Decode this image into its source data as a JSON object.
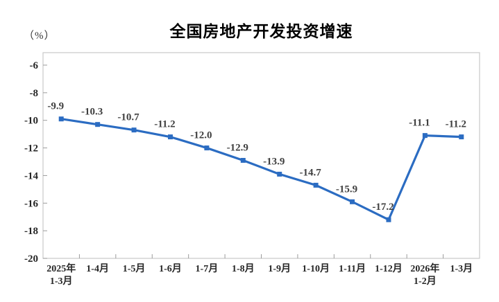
{
  "chart_data": {
    "type": "line",
    "title": "全国房地产开发投资增速",
    "unit": "（%）",
    "categories": [
      "2025年\n1-3月",
      "1-4月",
      "1-5月",
      "1-6月",
      "1-7月",
      "1-8月",
      "1-9月",
      "1-10月",
      "1-11月",
      "1-12月",
      "2026年\n1-2月",
      "1-3月"
    ],
    "values": [
      -9.9,
      -10.3,
      -10.7,
      -11.2,
      -12.0,
      -12.9,
      -13.9,
      -14.7,
      -15.9,
      -17.2,
      -11.1,
      -11.2
    ],
    "data_labels": [
      "-9.9",
      "-10.3",
      "-10.7",
      "-11.2",
      "-12.0",
      "-12.9",
      "-13.9",
      "-14.7",
      "-15.9",
      "-17.2",
      "-11.1",
      "-11.2"
    ],
    "xlabel": "",
    "ylabel": "（%）",
    "ylim": [
      -20,
      -6
    ],
    "yticks": [
      -6,
      -8,
      -10,
      -12,
      -14,
      -16,
      -18,
      -20
    ],
    "grid": false,
    "legend_position": "none",
    "marker": "square",
    "colors": {
      "line": "#2b6cc2",
      "marker": "#2b6cc2",
      "data_label": "#3f3f3f",
      "tick_label": "#262626",
      "plot_border": "#c9c9c9",
      "tick_mark": "#9b9b9b",
      "title": "#000000"
    }
  }
}
